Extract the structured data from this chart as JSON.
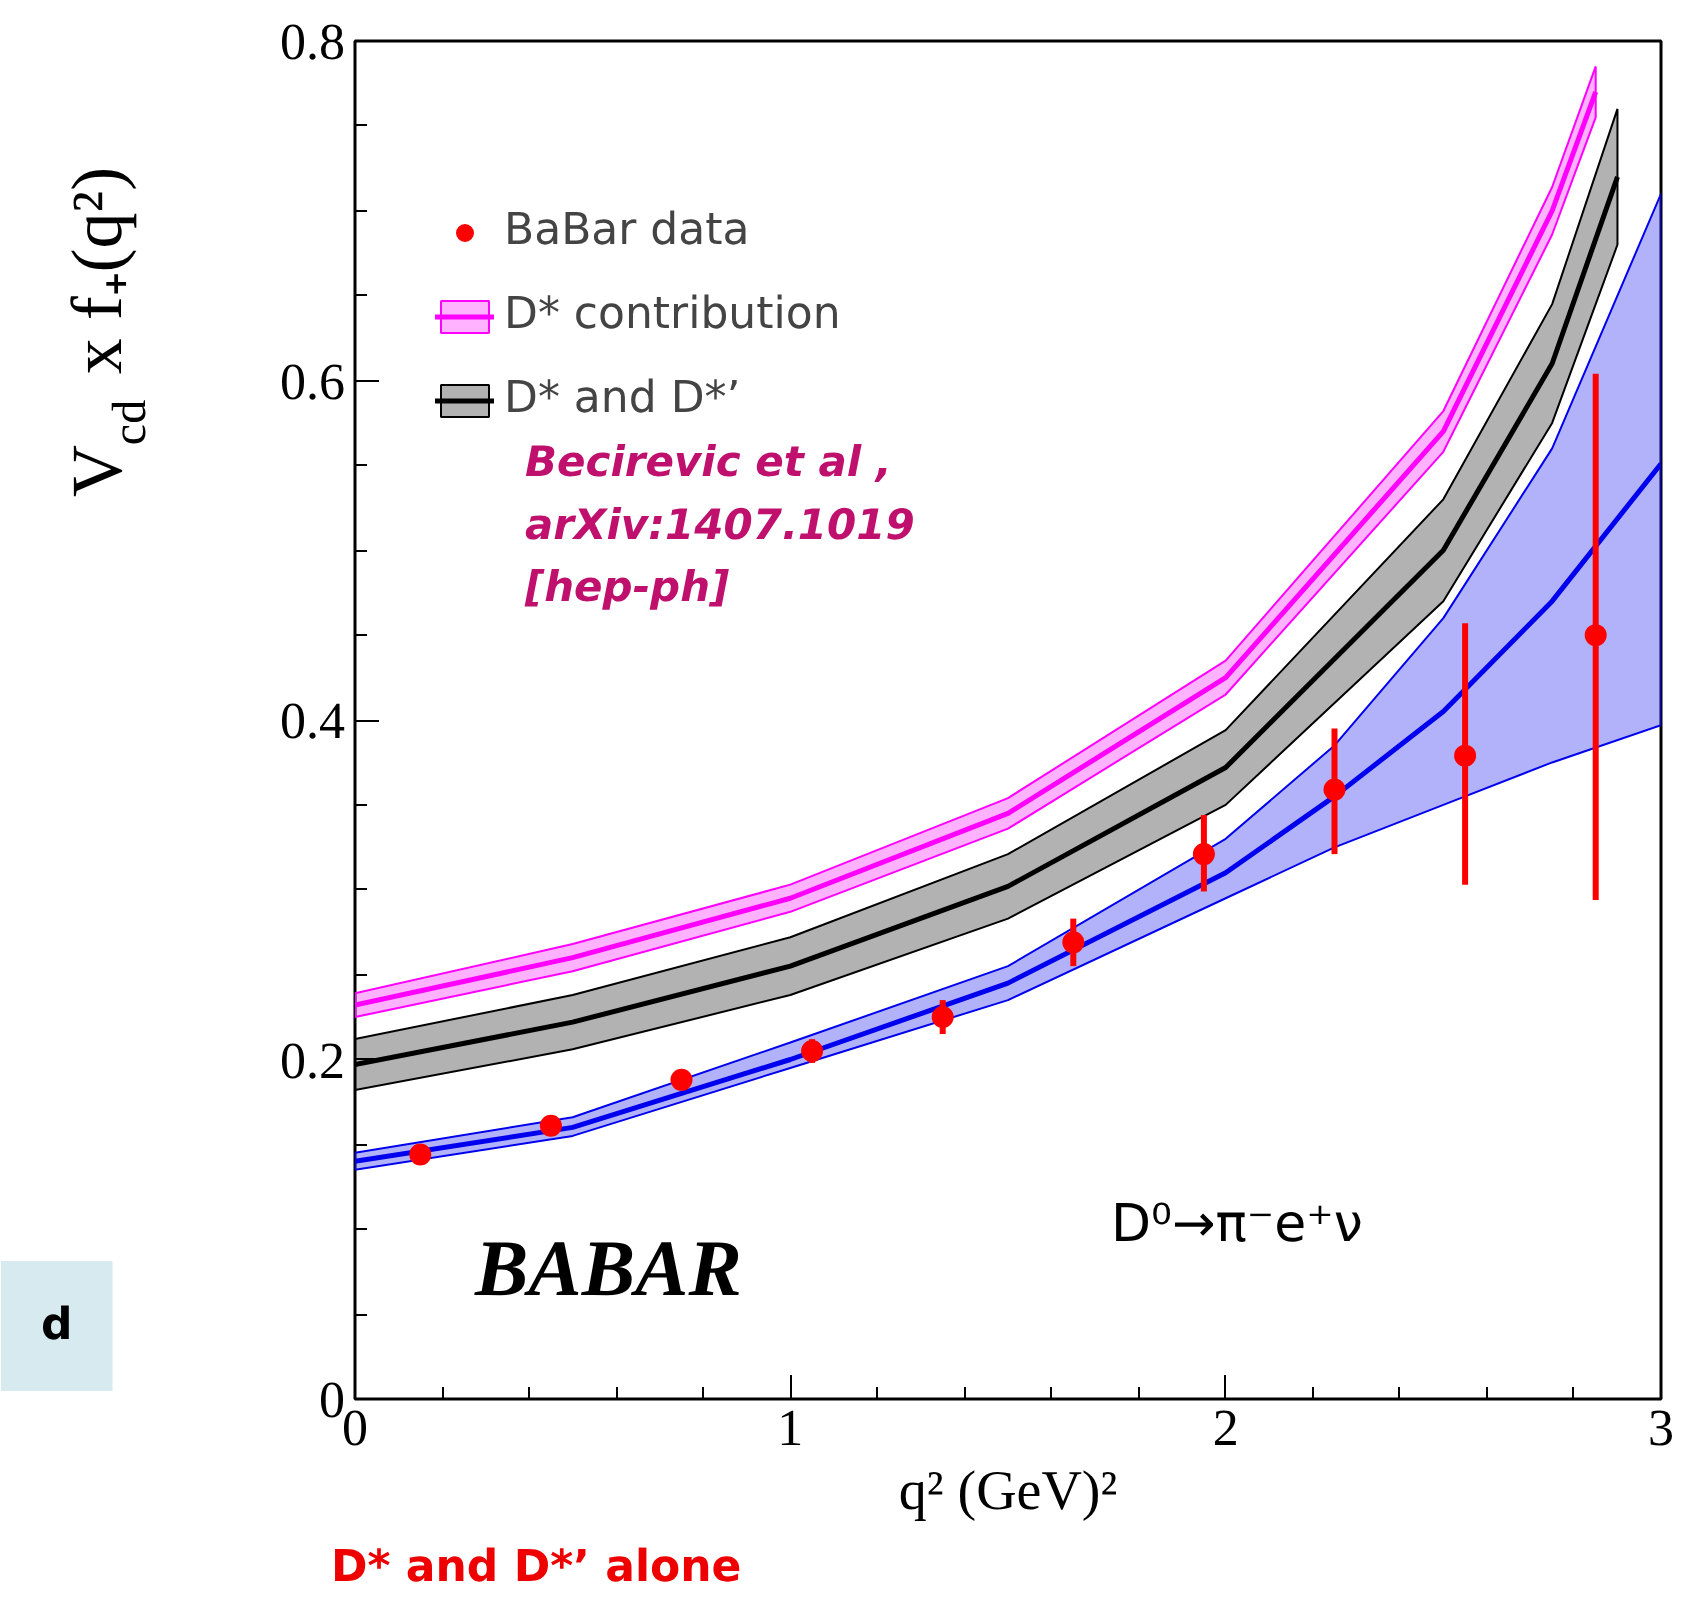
{
  "chart_data": {
    "type": "line",
    "xlabel": "q² (GeV)²",
    "ylabel": "V$_{cd}$ x f₊(q²)",
    "xlim": [
      0,
      3
    ],
    "ylim": [
      0,
      0.8
    ],
    "xticks": [
      0,
      {
        "value": 0.2,
        "label": null
      },
      {
        "value": 0.4,
        "label": null
      },
      {
        "value": 0.6,
        "label": null
      },
      {
        "value": 0.8,
        "label": null
      },
      1,
      {
        "value": 1.2,
        "label": null
      },
      {
        "value": 1.4,
        "label": null
      },
      {
        "value": 1.6,
        "label": null
      },
      {
        "value": 1.8,
        "label": null
      },
      2,
      {
        "value": 2.2,
        "label": null
      },
      {
        "value": 2.4,
        "label": null
      },
      {
        "value": 2.6,
        "label": null
      },
      {
        "value": 2.8,
        "label": null
      },
      3
    ],
    "yticks": [
      0,
      {
        "value": 0.05,
        "label": null
      },
      {
        "value": 0.1,
        "label": null
      },
      {
        "value": 0.15,
        "label": null
      },
      0.2,
      {
        "value": 0.25,
        "label": null
      },
      {
        "value": 0.3,
        "label": null
      },
      {
        "value": 0.35,
        "label": null
      },
      0.4,
      {
        "value": 0.45,
        "label": null
      },
      {
        "value": 0.5,
        "label": null
      },
      {
        "value": 0.55,
        "label": null
      },
      0.6,
      {
        "value": 0.65,
        "label": null
      },
      {
        "value": 0.7,
        "label": null
      },
      {
        "value": 0.75,
        "label": null
      },
      0.8
    ],
    "legend": "top left",
    "series": [
      {
        "color": "#0000ee",
        "x": [
          0,
          0.5,
          1,
          1.5,
          2,
          2.25,
          2.5,
          2.75,
          3
        ],
        "values": [
          0.14,
          0.16,
          0.2,
          0.245,
          0.31,
          0.355,
          0.405,
          0.47,
          0.551
        ],
        "lower": [
          0.135,
          0.155,
          0.195,
          0.235,
          0.295,
          0.325,
          0.35,
          0.375,
          0.397
        ],
        "upper": [
          0.145,
          0.166,
          0.21,
          0.255,
          0.33,
          0.385,
          0.46,
          0.56,
          0.71
        ]
      },
      {
        "name": "D* contribution",
        "color": "#ff00ff",
        "x": [
          0,
          0.5,
          1,
          1.5,
          2,
          2.5,
          2.75,
          2.85
        ],
        "values": [
          0.232,
          0.26,
          0.295,
          0.345,
          0.425,
          0.57,
          0.7,
          0.77
        ],
        "lower": [
          0.225,
          0.252,
          0.287,
          0.336,
          0.415,
          0.558,
          0.686,
          0.755
        ],
        "upper": [
          0.239,
          0.268,
          0.303,
          0.354,
          0.435,
          0.582,
          0.714,
          0.785
        ]
      },
      {
        "name": "D* and D*’",
        "color": "#000000",
        "x": [
          0,
          0.5,
          1,
          1.5,
          2,
          2.5,
          2.75,
          2.9
        ],
        "values": [
          0.197,
          0.222,
          0.255,
          0.302,
          0.372,
          0.5,
          0.61,
          0.72
        ],
        "lower": [
          0.182,
          0.206,
          0.238,
          0.283,
          0.35,
          0.47,
          0.575,
          0.68
        ],
        "upper": [
          0.212,
          0.238,
          0.272,
          0.321,
          0.394,
          0.53,
          0.645,
          0.76
        ]
      },
      {
        "type": "scatter",
        "name": "BaBar data",
        "color": "#ff0000",
        "marker": "circle",
        "x": [
          0.15,
          0.45,
          0.75,
          1.05,
          1.35,
          1.65,
          1.95,
          2.25,
          2.55,
          2.85
        ],
        "values": [
          0.144,
          0.161,
          0.188,
          0.205,
          0.225,
          0.269,
          0.321,
          0.359,
          0.379,
          0.45
        ],
        "errors": [
          0.004,
          0.004,
          0.005,
          0.007,
          0.01,
          [
            0.255,
            0.283
          ],
          [
            0.299,
            0.344
          ],
          [
            0.321,
            0.395
          ],
          [
            0.303,
            0.457
          ],
          [
            0.294,
            0.604
          ]
        ]
      }
    ],
    "annotations": [
      "Becirevic et al ,\narXiv:1407.1019\n[hep-ph]",
      "BABAR",
      "D⁰→π⁻e⁺ν",
      "d",
      "D* and D*’ alone"
    ]
  }
}
